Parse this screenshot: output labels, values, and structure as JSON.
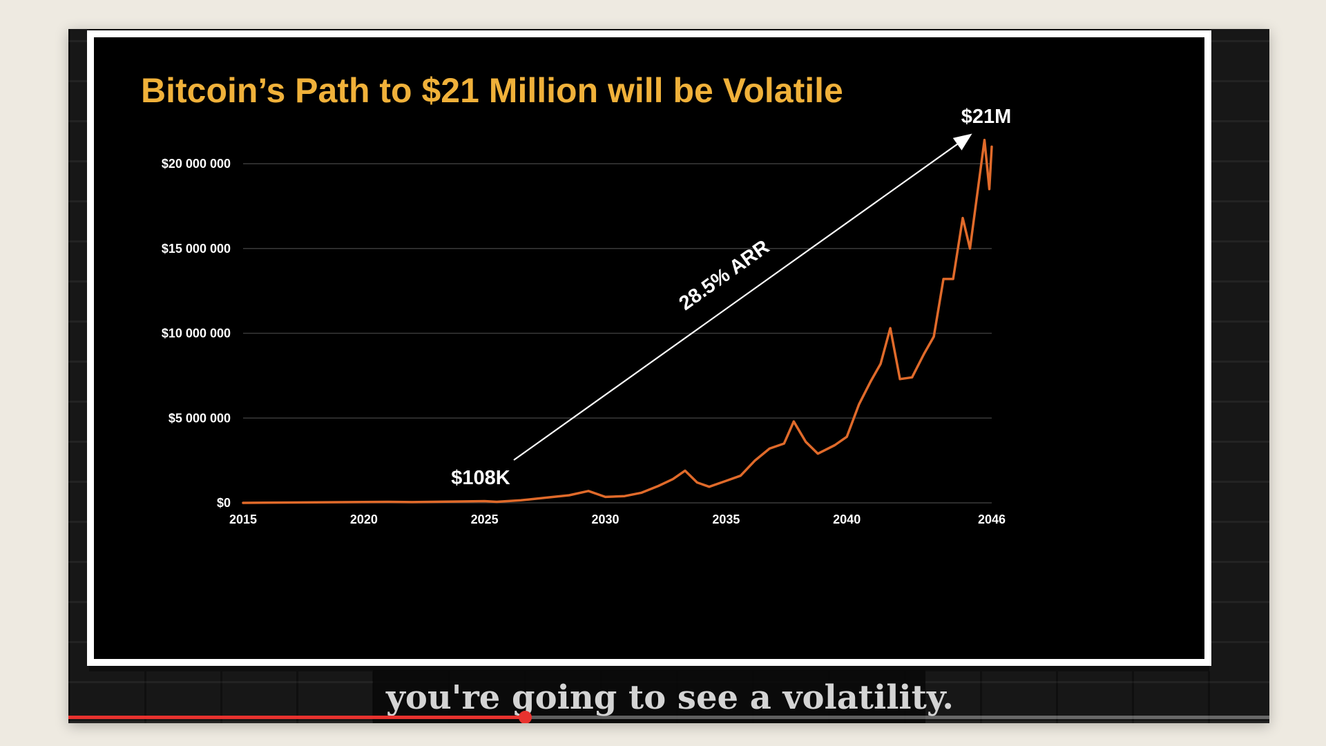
{
  "video": {
    "caption": "you're going to see a volatility.",
    "progress_fraction": 0.38,
    "progress_color": "#e8322e"
  },
  "chart_data": {
    "type": "line",
    "title": "Bitcoin’s Path to $21 Million will be Volatile",
    "title_color": "#f0b13a",
    "line_color": "#e06a2a",
    "grid": true,
    "xlim": [
      2015,
      2046
    ],
    "ylim": [
      0,
      20000000
    ],
    "x_ticks": [
      2015,
      2020,
      2025,
      2030,
      2035,
      2040,
      2046
    ],
    "y_ticks": [
      {
        "value": 0,
        "label": "$0"
      },
      {
        "value": 5000000,
        "label": "$5 000 000"
      },
      {
        "value": 10000000,
        "label": "$10 000 000"
      },
      {
        "value": 15000000,
        "label": "$15 000 000"
      },
      {
        "value": 20000000,
        "label": "$20 000 000"
      }
    ],
    "series": [
      {
        "x": [
          2015,
          2017,
          2019,
          2021,
          2022,
          2024,
          2025,
          2025.5,
          2026.5,
          2027.5,
          2028.5,
          2029.3,
          2030,
          2030.8,
          2031.5,
          2032.2,
          2032.8,
          2033.3,
          2033.8,
          2034.3,
          2035,
          2035.6,
          2036.2,
          2036.8,
          2037.4,
          2037.8,
          2038.3,
          2038.8,
          2039.5,
          2040,
          2040.5,
          2041,
          2041.4,
          2041.8,
          2042.2,
          2042.7,
          2043.2,
          2043.6,
          2044,
          2044.4,
          2044.8,
          2045.1,
          2045.4,
          2045.7,
          2045.9,
          2046
        ],
        "y": [
          0,
          20000,
          40000,
          60000,
          45000,
          80000,
          100000,
          60000,
          150000,
          300000,
          450000,
          700000,
          350000,
          400000,
          600000,
          1000000,
          1400000,
          1900000,
          1200000,
          950000,
          1300000,
          1600000,
          2500000,
          3200000,
          3500000,
          4800000,
          3600000,
          2900000,
          3400000,
          3900000,
          5800000,
          7200000,
          8200000,
          10300000,
          7300000,
          7400000,
          8800000,
          9800000,
          13200000,
          13200000,
          16800000,
          15000000,
          18200000,
          21400000,
          18500000,
          21000000
        ]
      }
    ],
    "annotations": {
      "start_label": "$108K",
      "end_label": "$21M",
      "trend_label": "28.5% ARR"
    }
  }
}
